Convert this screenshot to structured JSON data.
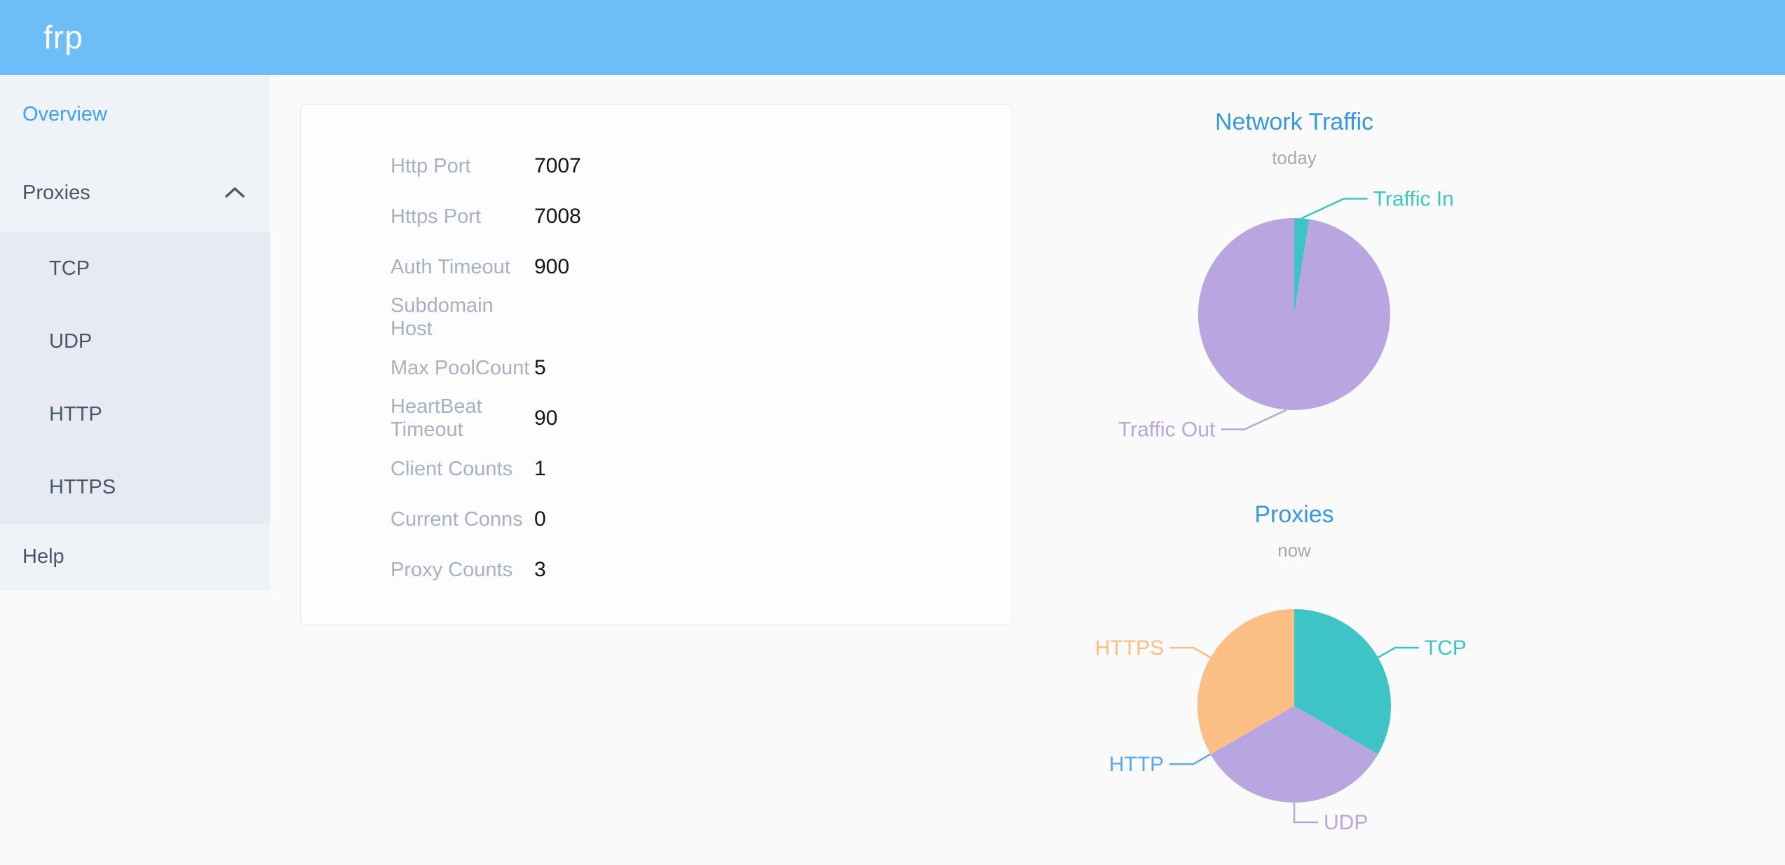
{
  "app": {
    "logo_text": "frp",
    "header_color": "#6cbdf8"
  },
  "sidebar": {
    "overview": {
      "label": "Overview",
      "active": true
    },
    "proxies": {
      "label": "Proxies",
      "expanded": true,
      "children": [
        {
          "label": "TCP"
        },
        {
          "label": "UDP"
        },
        {
          "label": "HTTP"
        },
        {
          "label": "HTTPS"
        }
      ]
    },
    "help": {
      "label": "Help"
    },
    "active_color": "#3ea0f4"
  },
  "server_info": {
    "rows": [
      {
        "label": "Http Port",
        "value": "7007"
      },
      {
        "label": "Https Port",
        "value": "7008"
      },
      {
        "label": "Auth Timeout",
        "value": "900"
      },
      {
        "label": "Subdomain Host",
        "value": ""
      },
      {
        "label": "Max PoolCount",
        "value": "5"
      },
      {
        "label": "HeartBeat Timeout",
        "value": "90"
      },
      {
        "label": "Client Counts",
        "value": "1"
      },
      {
        "label": "Current Conns",
        "value": "0"
      },
      {
        "label": "Proxy Counts",
        "value": "3"
      }
    ]
  },
  "chart_data": [
    {
      "type": "pie",
      "title": "Network Traffic",
      "subtitle": "today",
      "unit": "percent share (estimated from pie angles)",
      "direction": "clockwise",
      "start_angle": "12 o'clock",
      "legend_position": "callout-labels",
      "series": [
        {
          "name": "Traffic In",
          "value": 2.5,
          "color": "#3ec4c6"
        },
        {
          "name": "Traffic Out",
          "value": 97.5,
          "color": "#b9a6e0"
        }
      ]
    },
    {
      "type": "pie",
      "title": "Proxies",
      "subtitle": "now",
      "unit": "proxy count",
      "direction": "clockwise",
      "start_angle": "12 o'clock",
      "legend_position": "callout-labels",
      "series": [
        {
          "name": "TCP",
          "value": 1,
          "color": "#3ec4c6"
        },
        {
          "name": "UDP",
          "value": 1,
          "color": "#b9a6e0"
        },
        {
          "name": "HTTP",
          "value": 0,
          "color": "#58aaec"
        },
        {
          "name": "HTTPS",
          "value": 1,
          "color": "#fbbf85"
        }
      ]
    }
  ]
}
